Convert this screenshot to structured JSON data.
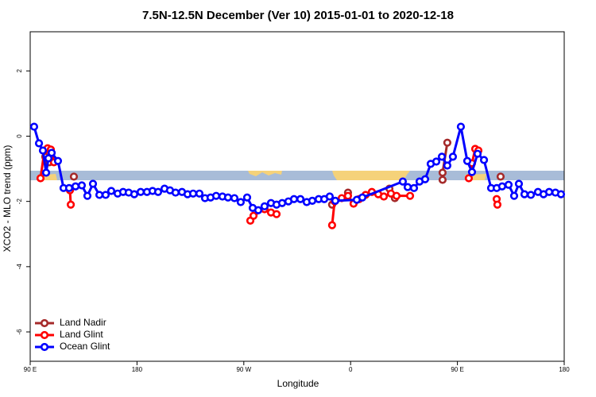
{
  "chart_data": {
    "type": "line",
    "title": "7.5N-12.5N December (Ver 10)   2015-01-01 to 2020-12-18",
    "x_label": "Longitude",
    "y_label": "XCO2 - MLO trend (ppm)",
    "xlim": [
      90,
      540
    ],
    "xticks": [
      {
        "value": 90,
        "label": "90 E"
      },
      180,
      {
        "value": 270,
        "label": "90 W"
      },
      {
        "value": 360,
        "label": "0"
      },
      {
        "value": 450,
        "label": "90 E"
      },
      {
        "value": 540,
        "label": "180"
      }
    ],
    "ylim": [
      -6.9,
      3.2
    ],
    "yticks": [
      -6,
      -4,
      -2,
      0,
      2
    ],
    "legend": "bottom-left",
    "series": [
      {
        "name": "Land Nadir",
        "color": "#a52a2a",
        "x": [
          102.7,
          106.1,
          null,
          126.8,
          null,
          344.4,
          null,
          357.8,
          null,
          392.7,
          397.3,
          null,
          437.5,
          437.5,
          441.5,
          null,
          486.4
        ],
        "values": [
          -0.63,
          -0.8,
          null,
          -1.24,
          null,
          -2.1,
          null,
          -1.73,
          null,
          -1.61,
          -1.9,
          null,
          -1.34,
          -1.12,
          -0.2,
          null,
          -1.24
        ]
      },
      {
        "name": "Land Glint",
        "color": "#ff0000",
        "x": [
          98.7,
          102,
          104.7,
          107.4,
          110,
          null,
          123.5,
          124.2,
          null,
          275.5,
          278.2,
          287.5,
          292.9,
          297.6,
          null,
          344.4,
          346.5,
          352.5,
          357.8,
          362.5,
          367.2,
          372.6,
          377.9,
          383.3,
          388,
          394,
          398.7,
          410.1,
          null,
          459.6,
          462.3,
          465,
          467.7,
          null,
          483.1,
          483.7
        ],
        "values": [
          -1.29,
          -0.44,
          -0.37,
          -0.41,
          -0.8,
          null,
          -1.66,
          -2.1,
          null,
          -2.59,
          -2.44,
          -2.24,
          -2.34,
          -2.39,
          null,
          -2.73,
          -2.0,
          -1.9,
          -1.83,
          -2.07,
          -1.93,
          -1.8,
          -1.71,
          -1.78,
          -1.85,
          -1.76,
          -1.83,
          -1.83,
          null,
          -1.29,
          -0.83,
          -0.39,
          -0.44,
          null,
          -1.93,
          -2.1
        ]
      },
      {
        "name": "Ocean Glint",
        "color": "#0000ff",
        "x": [
          93.3,
          97.4,
          100.7,
          103.4,
          105.4,
          108.1,
          113.4,
          118.1,
          122.8,
          128.2,
          133.5,
          138.2,
          142.9,
          148.3,
          153.6,
          158.3,
          163.7,
          168.3,
          173,
          177.7,
          183.1,
          188.4,
          193.1,
          197.8,
          203.2,
          207.8,
          212.5,
          217.9,
          222.6,
          227.3,
          232.6,
          237.3,
          242,
          246.7,
          252,
          256.7,
          262.1,
          267.4,
          272.8,
          277.5,
          282.2,
          287.5,
          292.9,
          297.6,
          302.3,
          307.6,
          312.3,
          317.7,
          323,
          327.7,
          333.1,
          337.8,
          342.4,
          347.1,
          365.2,
          369.9,
          404,
          408.1,
          413.4,
          418.1,
          422.8,
          427.5,
          432.2,
          436.9,
          441.5,
          446.2,
          452.9,
          458.3,
          462.3,
          467,
          472.4,
          478.4,
          483.1,
          487.7,
          493.1,
          497.8,
          501.8,
          506.5,
          511.9,
          517.9,
          522.6,
          527.3,
          532.6,
          537.3
        ],
        "values": [
          0.29,
          -0.22,
          -0.44,
          -1.12,
          -0.68,
          -0.51,
          -0.76,
          -1.59,
          -1.59,
          -1.54,
          -1.51,
          -1.83,
          -1.46,
          -1.8,
          -1.8,
          -1.68,
          -1.76,
          -1.71,
          -1.73,
          -1.78,
          -1.71,
          -1.71,
          -1.68,
          -1.71,
          -1.61,
          -1.66,
          -1.73,
          -1.71,
          -1.78,
          -1.76,
          -1.76,
          -1.9,
          -1.88,
          -1.83,
          -1.85,
          -1.88,
          -1.9,
          -2.02,
          -1.88,
          -2.2,
          -2.27,
          -2.15,
          -2.05,
          -2.1,
          -2.05,
          -2.0,
          -1.93,
          -1.93,
          -2.02,
          -1.98,
          -1.93,
          -1.93,
          -1.85,
          -1.98,
          -1.95,
          -1.88,
          -1.39,
          -1.56,
          -1.59,
          -1.39,
          -1.32,
          -0.85,
          -0.78,
          -0.63,
          -0.9,
          -0.63,
          0.29,
          -0.76,
          -1.1,
          -0.54,
          -0.73,
          -1.59,
          -1.59,
          -1.54,
          -1.49,
          -1.83,
          -1.46,
          -1.78,
          -1.8,
          -1.71,
          -1.78,
          -1.71,
          -1.73,
          -1.78
        ]
      }
    ]
  }
}
